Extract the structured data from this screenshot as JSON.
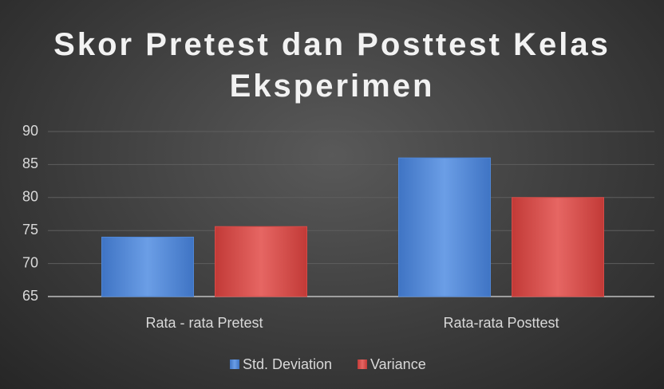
{
  "chart_data": {
    "type": "bar",
    "title": "Skor Pretest dan Posttest Kelas Eksperimen",
    "categories": [
      "Rata - rata Pretest",
      "Rata-rata Posttest"
    ],
    "series": [
      {
        "name": "Std. Deviation",
        "color": "#4f86d6",
        "values": [
          74,
          86
        ]
      },
      {
        "name": "Variance",
        "color": "#d64a47",
        "values": [
          75.6,
          80
        ]
      }
    ],
    "ylim": [
      65,
      90
    ],
    "yticks": [
      65,
      70,
      75,
      80,
      85,
      90
    ],
    "grid": true,
    "legend": "bottom"
  }
}
